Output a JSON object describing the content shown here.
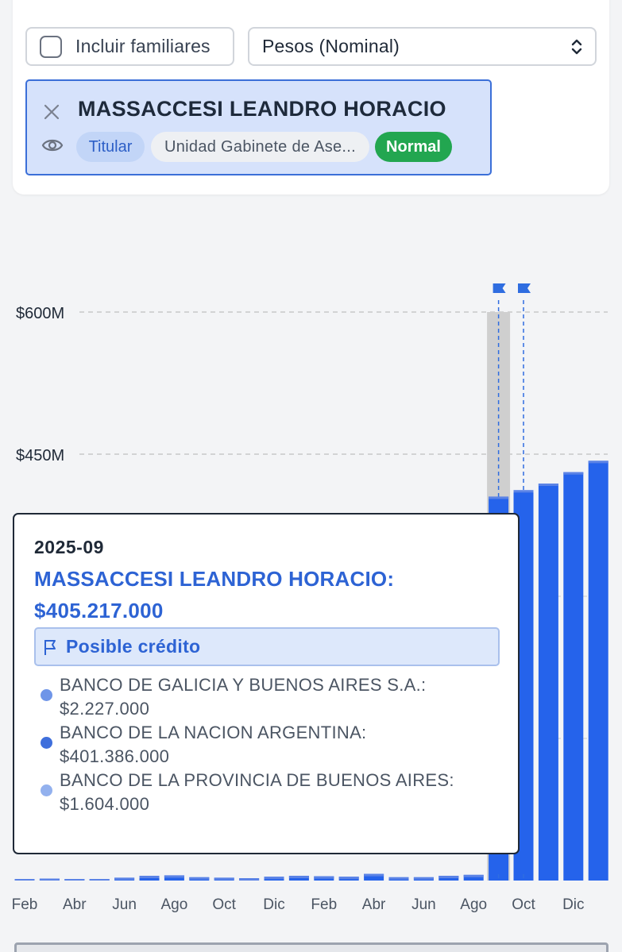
{
  "filters": {
    "include_family_label": "Incluir familiares",
    "include_family_checked": false,
    "currency_selected": "Pesos (Nominal)"
  },
  "person": {
    "name": "MASSACCESI LEANDRO HORACIO",
    "role_chip": "Titular",
    "unit_chip": "Unidad Gabinete de Ase...",
    "status_chip": "Normal"
  },
  "colors": {
    "bar": "#2563eb",
    "bar_top": "#5b83e6",
    "highlight": "#cfcfcf",
    "flag": "#2f6de0",
    "status_green": "#22a650"
  },
  "chart_data": {
    "type": "bar",
    "y_ticks": [
      "$600M",
      "$450M"
    ],
    "y_tick_values": [
      600,
      450
    ],
    "ylim": [
      0,
      600
    ],
    "x_tick_labels": [
      "Feb",
      "Abr",
      "Jun",
      "Ago",
      "Oct",
      "Dic",
      "Feb",
      "Abr",
      "Jun",
      "Ago",
      "Oct",
      "Dic"
    ],
    "values_millions": [
      1.5,
      2,
      1.5,
      1,
      3,
      5,
      5.5,
      3.5,
      3,
      2.5,
      4,
      5,
      4.5,
      4,
      7,
      3.5,
      3.5,
      5,
      6,
      405.217,
      412,
      419,
      431,
      443
    ],
    "flagged_indices": [
      19,
      20
    ],
    "highlighted_index": 19,
    "grid": "dashed-horizontal"
  },
  "tooltip": {
    "date": "2025-09",
    "name_line": "MASSACCESI LEANDRO HORACIO:",
    "total": "$405.217.000",
    "flag_label": "Posible crédito",
    "items": [
      {
        "bank": "BANCO DE GALICIA Y BUENOS AIRES S.A.:",
        "amount": "$2.227.000",
        "color": "#6f95e8"
      },
      {
        "bank": "BANCO DE LA NACION ARGENTINA:",
        "amount": "$401.386.000",
        "color": "#3f6fdc"
      },
      {
        "bank": "BANCO DE LA PROVINCIA DE BUENOS AIRES:",
        "amount": "$1.604.000",
        "color": "#93b1ee"
      }
    ]
  }
}
